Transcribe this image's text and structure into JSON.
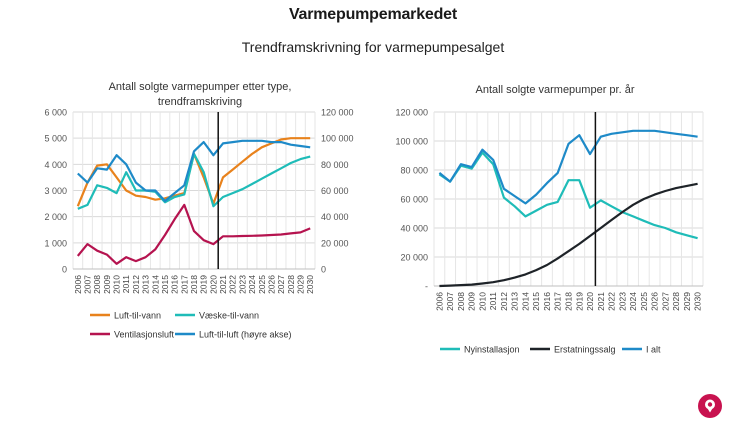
{
  "header": {
    "title": "Varmepumpemarkedet",
    "subtitle": "Trendframskrivning for varmepumpesalget"
  },
  "chart_data": [
    {
      "type": "line",
      "title": "Antall solgte varmepumper etter type, trendframskriving",
      "x": [
        "2006",
        "2007",
        "2008",
        "2009",
        "2010",
        "2011",
        "2012",
        "2013",
        "2014",
        "2015",
        "2016",
        "2017",
        "2018",
        "2019",
        "2020",
        "2021",
        "2022",
        "2023",
        "2024",
        "2025",
        "2026",
        "2027",
        "2028",
        "2029",
        "2030"
      ],
      "ylim": [
        0,
        6000
      ],
      "y2lim": [
        0,
        120000
      ],
      "yticks": [
        "0",
        "1 000",
        "2 000",
        "3 000",
        "4 000",
        "5 000",
        "6 000"
      ],
      "y2ticks": [
        "0",
        "20 000",
        "40 000",
        "60 000",
        "80 000",
        "100 000",
        "120 000"
      ],
      "forecast_start": "2020",
      "grid": true,
      "legend_position": "bottom",
      "series": [
        {
          "name": "Luft-til-vann",
          "axis": "left",
          "color": "#e8821c",
          "values": [
            2400,
            3300,
            3950,
            4000,
            3500,
            3000,
            2800,
            2750,
            2650,
            2700,
            2800,
            2900,
            4400,
            3500,
            2500,
            3500,
            3800,
            4100,
            4400,
            4650,
            4800,
            4950,
            5000,
            5000,
            5000
          ]
        },
        {
          "name": "Væske-til-vann",
          "axis": "left",
          "color": "#1fbcb8",
          "values": [
            2300,
            2450,
            3200,
            3100,
            2900,
            3700,
            3000,
            3000,
            2950,
            2550,
            2750,
            2850,
            4400,
            3700,
            2400,
            2750,
            2900,
            3050,
            3250,
            3450,
            3650,
            3850,
            4050,
            4200,
            4300
          ]
        },
        {
          "name": "Ventilasjonsluft",
          "axis": "left",
          "color": "#b5134f",
          "values": [
            500,
            950,
            700,
            550,
            200,
            450,
            300,
            450,
            750,
            1300,
            1900,
            2450,
            1450,
            1100,
            950,
            1250,
            1250,
            1260,
            1270,
            1280,
            1300,
            1320,
            1360,
            1400,
            1550
          ]
        },
        {
          "name": "Luft-til-luft (høyre akse)",
          "axis": "right",
          "color": "#1e8ac8",
          "values": [
            73000,
            66000,
            77000,
            76000,
            87000,
            80000,
            66000,
            60000,
            60000,
            52000,
            58000,
            64000,
            90000,
            97000,
            87000,
            96000,
            97000,
            98000,
            98000,
            98000,
            97000,
            97000,
            95000,
            94000,
            93000
          ]
        }
      ]
    },
    {
      "type": "line",
      "title": "Antall solgte varmepumper pr. år",
      "x": [
        "2006",
        "2007",
        "2008",
        "2009",
        "2010",
        "2011",
        "2012",
        "2013",
        "2014",
        "2015",
        "2016",
        "2017",
        "2018",
        "2019",
        "2020",
        "2021",
        "2022",
        "2023",
        "2024",
        "2025",
        "2026",
        "2027",
        "2028",
        "2029",
        "2030"
      ],
      "ylim": [
        0,
        120000
      ],
      "yticks": [
        "-",
        "20 000",
        "40 000",
        "60 000",
        "80 000",
        "100 000",
        "120 000"
      ],
      "forecast_start": "2020",
      "grid": true,
      "legend_position": "bottom",
      "series": [
        {
          "name": "Nyinstallasjon",
          "color": "#1fbcb8",
          "values": [
            77000,
            72000,
            83000,
            81000,
            92000,
            84000,
            61000,
            55000,
            48000,
            52000,
            56000,
            58000,
            73000,
            73000,
            54000,
            59000,
            55000,
            51000,
            48000,
            45000,
            42000,
            40000,
            37000,
            35000,
            33000
          ]
        },
        {
          "name": "Erstatningssalg",
          "color": "#1e2328",
          "values": [
            0,
            300,
            600,
            1000,
            1700,
            2600,
            4000,
            5800,
            8000,
            11000,
            14500,
            19000,
            24000,
            29000,
            34500,
            40000,
            45500,
            51000,
            56000,
            60000,
            63000,
            65500,
            67500,
            69000,
            70500
          ]
        },
        {
          "name": "I alt",
          "color": "#1e8ac8",
          "values": [
            78000,
            72000,
            84000,
            82000,
            94000,
            87000,
            67000,
            62000,
            57000,
            63000,
            71000,
            78000,
            98000,
            104000,
            91000,
            103000,
            105000,
            106000,
            107000,
            107000,
            107000,
            106000,
            105000,
            104000,
            103000
          ]
        }
      ]
    }
  ]
}
